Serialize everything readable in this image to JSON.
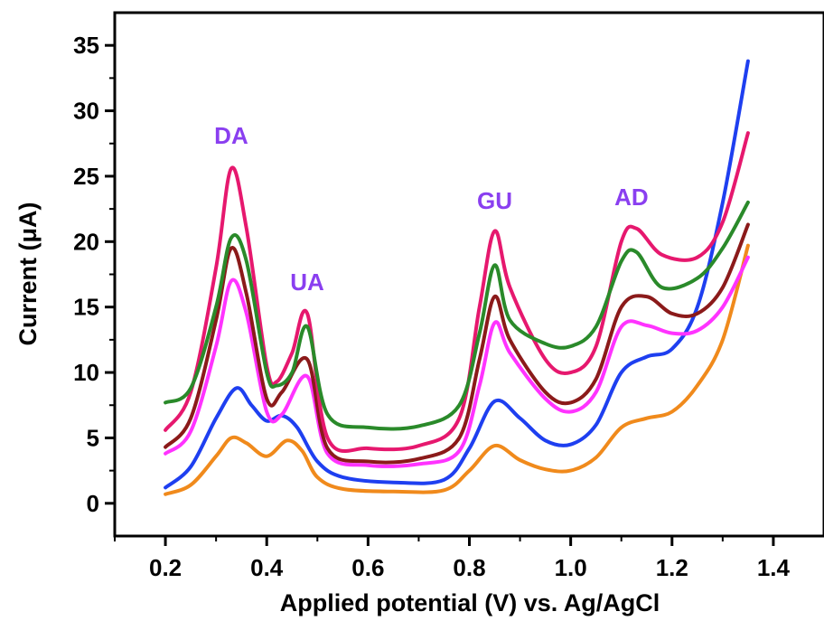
{
  "chart_data": {
    "type": "line",
    "title": "",
    "xlabel": "Applied potential (V) vs. Ag/AgCl",
    "ylabel": "Current (μA)",
    "xlim": [
      0.1,
      1.5
    ],
    "ylim": [
      -2.5,
      37.5
    ],
    "xticks": [
      0.2,
      0.4,
      0.6,
      0.8,
      1.0,
      1.2,
      1.4
    ],
    "xtick_labels": [
      "0.2",
      "0.4",
      "0.6",
      "0.8",
      "1.0",
      "1.2",
      "1.4"
    ],
    "yticks": [
      0,
      5,
      10,
      15,
      20,
      25,
      30,
      35
    ],
    "ytick_labels": [
      "0",
      "5",
      "10",
      "15",
      "20",
      "25",
      "30",
      "35"
    ],
    "grid": false,
    "annotations": [
      {
        "text": "DA",
        "x": 0.33,
        "y": 27.5
      },
      {
        "text": "UA",
        "x": 0.48,
        "y": 16.3
      },
      {
        "text": "GU",
        "x": 0.85,
        "y": 22.5
      },
      {
        "text": "AD",
        "x": 1.12,
        "y": 22.8
      }
    ],
    "series": [
      {
        "color": "#f08a1c",
        "points": [
          [
            0.2,
            0.7
          ],
          [
            0.25,
            1.4
          ],
          [
            0.3,
            3.6
          ],
          [
            0.33,
            5.0
          ],
          [
            0.36,
            4.6
          ],
          [
            0.4,
            3.6
          ],
          [
            0.44,
            4.8
          ],
          [
            0.47,
            4.0
          ],
          [
            0.5,
            2.0
          ],
          [
            0.55,
            1.1
          ],
          [
            0.65,
            0.9
          ],
          [
            0.75,
            1.0
          ],
          [
            0.8,
            2.5
          ],
          [
            0.85,
            4.4
          ],
          [
            0.9,
            3.3
          ],
          [
            0.95,
            2.6
          ],
          [
            1.0,
            2.5
          ],
          [
            1.05,
            3.5
          ],
          [
            1.1,
            5.8
          ],
          [
            1.15,
            6.5
          ],
          [
            1.2,
            7.0
          ],
          [
            1.25,
            9.0
          ],
          [
            1.3,
            12.5
          ],
          [
            1.35,
            19.7
          ]
        ]
      },
      {
        "color": "#1e3ff0",
        "points": [
          [
            0.2,
            1.2
          ],
          [
            0.25,
            2.8
          ],
          [
            0.3,
            6.5
          ],
          [
            0.34,
            8.8
          ],
          [
            0.37,
            7.5
          ],
          [
            0.4,
            6.3
          ],
          [
            0.43,
            6.7
          ],
          [
            0.46,
            5.8
          ],
          [
            0.5,
            3.2
          ],
          [
            0.55,
            2.0
          ],
          [
            0.65,
            1.6
          ],
          [
            0.75,
            1.8
          ],
          [
            0.8,
            4.2
          ],
          [
            0.85,
            7.8
          ],
          [
            0.9,
            6.5
          ],
          [
            0.95,
            4.8
          ],
          [
            1.0,
            4.5
          ],
          [
            1.05,
            6.0
          ],
          [
            1.1,
            10.0
          ],
          [
            1.15,
            11.2
          ],
          [
            1.2,
            11.8
          ],
          [
            1.25,
            15.0
          ],
          [
            1.3,
            23.0
          ],
          [
            1.35,
            33.8
          ]
        ]
      },
      {
        "color": "#ff33ff",
        "points": [
          [
            0.2,
            3.8
          ],
          [
            0.25,
            5.5
          ],
          [
            0.3,
            12.0
          ],
          [
            0.33,
            17.0
          ],
          [
            0.36,
            14.5
          ],
          [
            0.4,
            7.0
          ],
          [
            0.43,
            6.8
          ],
          [
            0.48,
            9.7
          ],
          [
            0.52,
            3.8
          ],
          [
            0.6,
            2.9
          ],
          [
            0.7,
            3.0
          ],
          [
            0.78,
            4.0
          ],
          [
            0.82,
            9.0
          ],
          [
            0.85,
            13.8
          ],
          [
            0.88,
            11.5
          ],
          [
            0.95,
            8.0
          ],
          [
            1.0,
            7.0
          ],
          [
            1.05,
            8.5
          ],
          [
            1.1,
            13.5
          ],
          [
            1.15,
            13.6
          ],
          [
            1.2,
            13.0
          ],
          [
            1.25,
            13.2
          ],
          [
            1.3,
            15.0
          ],
          [
            1.35,
            18.8
          ]
        ]
      },
      {
        "color": "#8b1a1a",
        "points": [
          [
            0.2,
            4.3
          ],
          [
            0.25,
            6.5
          ],
          [
            0.3,
            14.0
          ],
          [
            0.33,
            19.5
          ],
          [
            0.36,
            16.0
          ],
          [
            0.4,
            8.0
          ],
          [
            0.43,
            8.5
          ],
          [
            0.48,
            11.0
          ],
          [
            0.52,
            4.2
          ],
          [
            0.6,
            3.2
          ],
          [
            0.7,
            3.4
          ],
          [
            0.78,
            5.0
          ],
          [
            0.82,
            11.0
          ],
          [
            0.85,
            15.8
          ],
          [
            0.88,
            12.5
          ],
          [
            0.95,
            8.5
          ],
          [
            1.0,
            7.7
          ],
          [
            1.05,
            9.5
          ],
          [
            1.1,
            15.0
          ],
          [
            1.15,
            15.8
          ],
          [
            1.2,
            14.5
          ],
          [
            1.25,
            14.5
          ],
          [
            1.3,
            16.5
          ],
          [
            1.35,
            21.3
          ]
        ]
      },
      {
        "color": "#e6186e",
        "points": [
          [
            0.2,
            5.6
          ],
          [
            0.25,
            8.5
          ],
          [
            0.3,
            18.0
          ],
          [
            0.33,
            25.6
          ],
          [
            0.36,
            21.0
          ],
          [
            0.4,
            10.5
          ],
          [
            0.42,
            9.3
          ],
          [
            0.45,
            11.5
          ],
          [
            0.48,
            14.5
          ],
          [
            0.52,
            5.0
          ],
          [
            0.6,
            4.2
          ],
          [
            0.7,
            4.4
          ],
          [
            0.78,
            6.5
          ],
          [
            0.82,
            15.0
          ],
          [
            0.85,
            20.8
          ],
          [
            0.88,
            16.5
          ],
          [
            0.95,
            11.0
          ],
          [
            1.0,
            10.0
          ],
          [
            1.05,
            12.0
          ],
          [
            1.1,
            20.0
          ],
          [
            1.13,
            21.0
          ],
          [
            1.18,
            19.0
          ],
          [
            1.25,
            18.8
          ],
          [
            1.3,
            21.5
          ],
          [
            1.35,
            28.3
          ]
        ]
      },
      {
        "color": "#2a8a2a",
        "points": [
          [
            0.2,
            7.7
          ],
          [
            0.25,
            8.8
          ],
          [
            0.3,
            15.0
          ],
          [
            0.33,
            20.3
          ],
          [
            0.36,
            18.5
          ],
          [
            0.4,
            10.0
          ],
          [
            0.42,
            9.0
          ],
          [
            0.45,
            10.0
          ],
          [
            0.48,
            13.5
          ],
          [
            0.52,
            6.8
          ],
          [
            0.6,
            5.8
          ],
          [
            0.7,
            5.9
          ],
          [
            0.78,
            7.5
          ],
          [
            0.82,
            13.0
          ],
          [
            0.85,
            18.2
          ],
          [
            0.88,
            14.0
          ],
          [
            0.95,
            12.2
          ],
          [
            1.0,
            12.0
          ],
          [
            1.05,
            13.5
          ],
          [
            1.1,
            18.5
          ],
          [
            1.13,
            19.2
          ],
          [
            1.18,
            16.5
          ],
          [
            1.25,
            17.2
          ],
          [
            1.3,
            19.5
          ],
          [
            1.35,
            23.0
          ]
        ]
      }
    ]
  }
}
